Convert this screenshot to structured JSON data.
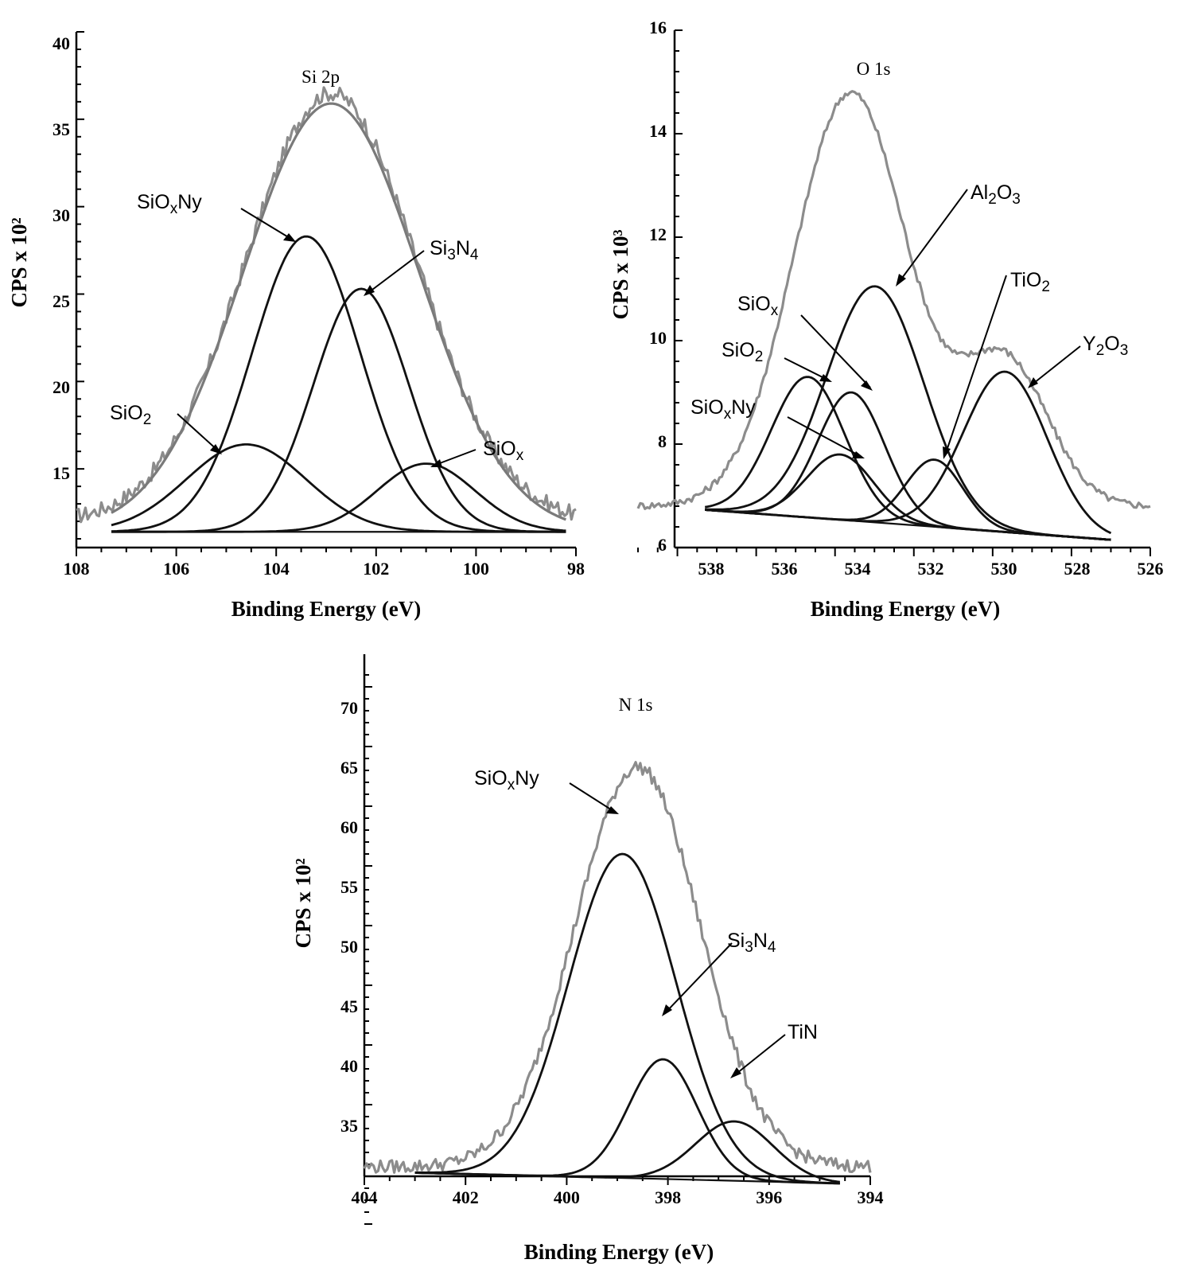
{
  "colors": {
    "experimental": "#8c8c8c",
    "fit": "#111111",
    "axis": "#000000"
  },
  "chart_data": [
    {
      "type": "line",
      "title": "Si 2p",
      "xlabel": "Binding Energy (eV)",
      "ylabel": "CPS x 10²",
      "xlim": [
        108,
        98
      ],
      "ylim": [
        10.5,
        40
      ],
      "x_ticks": [
        "108",
        "106",
        "104",
        "102",
        "100",
        "98"
      ],
      "y_ticks": [
        "40",
        "35",
        "30",
        "25",
        "20",
        "15"
      ],
      "baseline": {
        "start": [
          107.3,
          11.4
        ],
        "end": [
          98.2,
          11.4
        ]
      },
      "components": [
        {
          "name": "SiOxNy",
          "center": 103.4,
          "peak": 28.3,
          "fwhm": 2.55
        },
        {
          "name": "Si3N4",
          "center": 102.3,
          "peak": 25.3,
          "fwhm": 2.25
        },
        {
          "name": "SiO2",
          "center": 104.6,
          "peak": 16.4,
          "fwhm": 2.8
        },
        {
          "name": "SiOx",
          "center": 101.0,
          "peak": 15.3,
          "fwhm": 2.3
        }
      ],
      "envelope": {
        "center": 102.9,
        "peak": 35.9,
        "fwhm": 4.15
      },
      "experimental": {
        "center": 102.9,
        "peak": 36.5,
        "fwhm": 4.05,
        "noise": 0.45,
        "x_start": 108,
        "x_end": 98,
        "tail": 12.0
      },
      "annotations": [
        {
          "label": "SiOxNy",
          "point_to": [
            103.4,
            28.3
          ]
        },
        {
          "label": "Si3N4",
          "point_to": [
            102.3,
            25.3
          ]
        },
        {
          "label": "SiO2",
          "point_to": [
            105.1,
            15.7
          ]
        },
        {
          "label": "SiOx",
          "point_to": [
            100.9,
            15.3
          ]
        }
      ]
    },
    {
      "type": "line",
      "title": "O 1s",
      "xlabel": "Binding Energy (eV)",
      "ylabel": "CPS x 10³",
      "xlim": [
        539,
        526
      ],
      "ylim": [
        6,
        16
      ],
      "x_ticks": [
        "538",
        "536",
        "534",
        "532",
        "530",
        "528",
        "526"
      ],
      "y_ticks": [
        "16",
        "14",
        "12",
        "10",
        "8",
        "6"
      ],
      "baseline": {
        "start": [
          537.3,
          6.73
        ],
        "end": [
          527.0,
          6.15
        ]
      },
      "components": [
        {
          "name": "Al2O3",
          "center": 533.0,
          "peak": 11.05,
          "fwhm": 2.9
        },
        {
          "name": "SiO2",
          "center": 534.7,
          "peak": 9.3,
          "fwhm": 2.2
        },
        {
          "name": "SiOx",
          "center": 533.6,
          "peak": 9.0,
          "fwhm": 2.0
        },
        {
          "name": "SiOxNy",
          "center": 533.9,
          "peak": 7.8,
          "fwhm": 2.0
        },
        {
          "name": "TiO2",
          "center": 531.5,
          "peak": 7.7,
          "fwhm": 1.7
        },
        {
          "name": "Y2O3",
          "center": 529.7,
          "peak": 9.4,
          "fwhm": 2.5
        }
      ],
      "envelope": null,
      "experimental": {
        "center": 533.6,
        "peak": 14.8,
        "fwhm": 3.4,
        "noise": 0.07,
        "x_start": 539,
        "x_end": 526,
        "tail": 6.8,
        "shoulder": {
          "center": 529.7,
          "peak": 2.8,
          "fwhm": 2.6
        }
      },
      "annotations": [
        {
          "label": "Al2O3",
          "point_to": [
            533.0,
            11.0
          ]
        },
        {
          "label": "TiO2",
          "point_to": [
            531.5,
            7.6
          ]
        },
        {
          "label": "SiOx",
          "point_to": [
            533.6,
            9.0
          ]
        },
        {
          "label": "SiO2",
          "point_to": [
            534.7,
            9.3
          ]
        },
        {
          "label": "SiOxNy",
          "point_to": [
            533.9,
            7.8
          ]
        },
        {
          "label": "Y2O3",
          "point_to": [
            529.1,
            9.2
          ]
        }
      ]
    },
    {
      "type": "line",
      "title": "N 1s",
      "xlabel": "Binding Energy (eV)",
      "ylabel": "CPS x 10²",
      "xlim": [
        404,
        394
      ],
      "ylim": [
        30,
        76
      ],
      "x_ticks": [
        "404",
        "402",
        "400",
        "398",
        "396",
        "394"
      ],
      "y_ticks": [
        "70",
        "65",
        "60",
        "55",
        "50",
        "45",
        "40",
        "35"
      ],
      "baseline": {
        "start": [
          403.0,
          34.3
        ],
        "end": [
          394.6,
          33.4
        ]
      },
      "components": [
        {
          "name": "SiOxNy",
          "center": 398.9,
          "peak": 61.0,
          "fwhm": 2.5
        },
        {
          "name": "Si3N4",
          "center": 398.1,
          "peak": 43.8,
          "fwhm": 1.6
        },
        {
          "name": "TiN",
          "center": 396.7,
          "peak": 38.6,
          "fwhm": 1.8
        }
      ],
      "envelope": null,
      "experimental": {
        "center": 398.6,
        "peak": 68.3,
        "fwhm": 2.9,
        "noise": 0.55,
        "x_start": 404,
        "x_end": 394,
        "tail": 34.8
      },
      "annotations": [
        {
          "label": "SiOxNy",
          "point_to": [
            398.9,
            61.0
          ]
        },
        {
          "label": "Si3N4",
          "point_to": [
            398.1,
            43.8
          ]
        },
        {
          "label": "TiN",
          "point_to": [
            396.7,
            38.6
          ]
        }
      ]
    }
  ]
}
